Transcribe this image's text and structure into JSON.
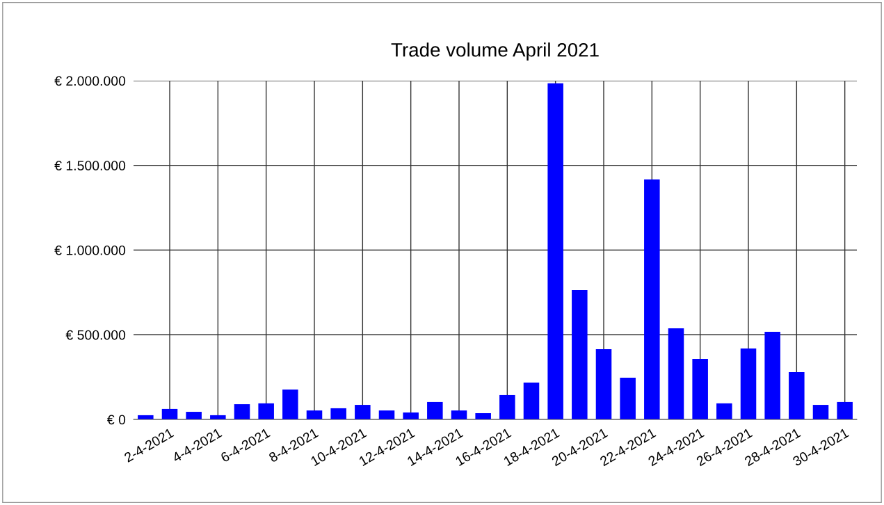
{
  "chart_data": {
    "type": "bar",
    "title": "Trade volume April 2021",
    "categories": [
      null,
      "2-4-2021",
      null,
      "4-4-2021",
      null,
      "6-4-2021",
      null,
      "8-4-2021",
      null,
      "10-4-2021",
      null,
      "12-4-2021",
      null,
      "14-4-2021",
      null,
      "16-4-2021",
      null,
      "18-4-2021",
      null,
      "20-4-2021",
      null,
      "22-4-2021",
      null,
      "24-4-2021",
      null,
      "26-4-2021",
      null,
      "28-4-2021",
      null,
      "30-4-2021"
    ],
    "values": [
      25000,
      62000,
      45000,
      25000,
      90000,
      95000,
      177000,
      53000,
      66000,
      86000,
      53000,
      41000,
      103000,
      53000,
      37000,
      144000,
      218000,
      1985000,
      764000,
      415000,
      246000,
      1417000,
      538000,
      357000,
      95000,
      419000,
      517000,
      279000,
      86000,
      103000
    ],
    "color": "#0000ff",
    "ylim": [
      0,
      2000000
    ],
    "yticks": [
      {
        "value": 0,
        "label": "€ 0"
      },
      {
        "value": 500000,
        "label": "€ 500.000"
      },
      {
        "value": 1000000,
        "label": "€ 1.000.000"
      },
      {
        "value": 1500000,
        "label": "€ 1.500.000"
      },
      {
        "value": 2000000,
        "label": "€ 2.000.000"
      }
    ],
    "grid": true,
    "legend": false
  }
}
